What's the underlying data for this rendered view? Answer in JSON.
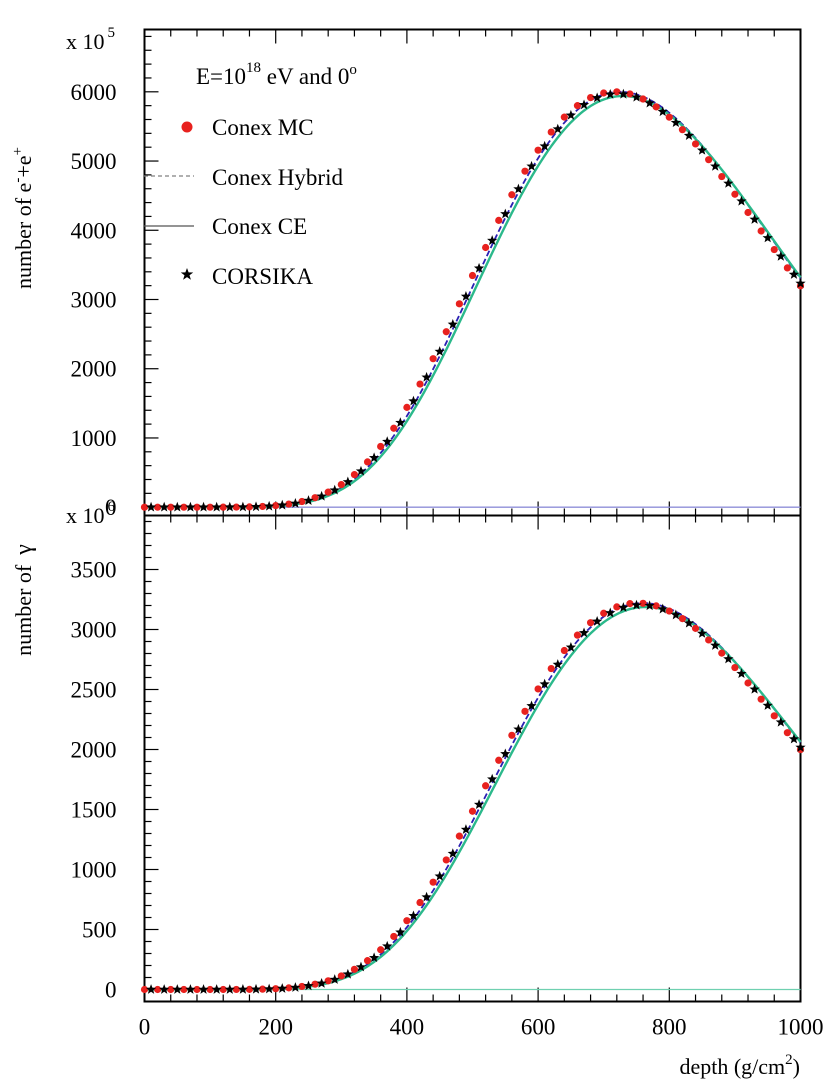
{
  "chart_data": [
    {
      "type": "line",
      "panel": "top",
      "title": "E=10^18 eV and 0^o",
      "annotation": {
        "base": "E=10",
        "exp": "18",
        "rest": " eV and 0",
        "deg": "o"
      },
      "ylabel": {
        "main": "number of e",
        "sup1": "-",
        "mid": "+e",
        "sup2": "+"
      },
      "yscale": {
        "base": "x 10",
        "exp": "5"
      },
      "xlabel": "",
      "xlim": [
        0,
        1000
      ],
      "ylim": [
        -120,
        6900
      ],
      "yticks": [
        0,
        1000,
        2000,
        3000,
        4000,
        5000,
        6000
      ],
      "yticklabels": [
        "0",
        "1000",
        "2000",
        "3000",
        "4000",
        "5000",
        "6000"
      ],
      "profile": {
        "xmax": 725,
        "nmax": 6000,
        "x0": 0,
        "lambda": 70
      },
      "marker_x": [
        0,
        20,
        40,
        60,
        80,
        100,
        120,
        140,
        160,
        180,
        200,
        220,
        240,
        260,
        280,
        300,
        320,
        340,
        360,
        380,
        400,
        420,
        440,
        460,
        480,
        500,
        520,
        540,
        560,
        580,
        600,
        620,
        640,
        660,
        680,
        700,
        720,
        740,
        760,
        780,
        800,
        820,
        840,
        860,
        880,
        900,
        920,
        940,
        960,
        980,
        1000
      ],
      "series": [
        {
          "name": "Conex MC",
          "style": "circles",
          "color": "#e8211e",
          "shift": -8,
          "scale": 1.0
        },
        {
          "name": "Conex Hybrid",
          "style": "dashed",
          "color": "#2a1fb3",
          "shift": 0,
          "scale": 1.0
        },
        {
          "name": "Conex CE",
          "style": "solid",
          "color": "#2bb98b",
          "shift": 4,
          "scale": 0.99
        },
        {
          "name": "CORSIKA",
          "style": "stars",
          "color": "#000000",
          "shift": -4,
          "scale": 0.995
        }
      ],
      "baseline_color": "#8f8fd8"
    },
    {
      "type": "line",
      "panel": "bottom",
      "title": "",
      "ylabel": {
        "main": "number of",
        "gamma": "γ"
      },
      "yscale": {
        "base": "x 10",
        "exp": "6"
      },
      "xlabel": "depth (g/cm2)",
      "xlabel_parts": {
        "main": "depth (g/cm",
        "exp": "2",
        "end": ")"
      },
      "xlim": [
        0,
        1000
      ],
      "ylim": [
        -100,
        3950
      ],
      "xticks": [
        0,
        200,
        400,
        600,
        800,
        1000
      ],
      "xticklabels": [
        "0",
        "200",
        "400",
        "600",
        "800",
        "1000"
      ],
      "yticks": [
        0,
        500,
        1000,
        1500,
        2000,
        2500,
        3000,
        3500
      ],
      "yticklabels": [
        "0",
        "500",
        "1000",
        "1500",
        "2000",
        "2500",
        "3000",
        "3500"
      ],
      "profile": {
        "xmax": 760,
        "nmax": 3220,
        "x0": 0,
        "lambda": 70
      },
      "marker_x": [
        0,
        20,
        40,
        60,
        80,
        100,
        120,
        140,
        160,
        180,
        200,
        220,
        240,
        260,
        280,
        300,
        320,
        340,
        360,
        380,
        400,
        420,
        440,
        460,
        480,
        500,
        520,
        540,
        560,
        580,
        600,
        620,
        640,
        660,
        680,
        700,
        720,
        740,
        760,
        780,
        800,
        820,
        840,
        860,
        880,
        900,
        920,
        940,
        960,
        980,
        1000
      ],
      "series": [
        {
          "name": "Conex MC",
          "style": "circles",
          "color": "#e8211e",
          "shift": -8,
          "scale": 1.0
        },
        {
          "name": "Conex Hybrid",
          "style": "dashed",
          "color": "#2a1fb3",
          "shift": 0,
          "scale": 1.0
        },
        {
          "name": "Conex CE",
          "style": "solid",
          "color": "#2bb98b",
          "shift": 4,
          "scale": 0.99
        },
        {
          "name": "CORSIKA",
          "style": "stars",
          "color": "#000000",
          "shift": -4,
          "scale": 0.995
        }
      ],
      "baseline_color": "#6fd0b0"
    }
  ],
  "legend": [
    {
      "label": "Conex MC",
      "color": "#e8211e",
      "symbol": "circle"
    },
    {
      "label": "Conex Hybrid",
      "color": "#2a1fb3",
      "symbol": "dashed"
    },
    {
      "label": "Conex CE",
      "color": "#2bb98b",
      "symbol": "solid"
    },
    {
      "label": "CORSIKA",
      "color": "#000000",
      "symbol": "star"
    }
  ]
}
